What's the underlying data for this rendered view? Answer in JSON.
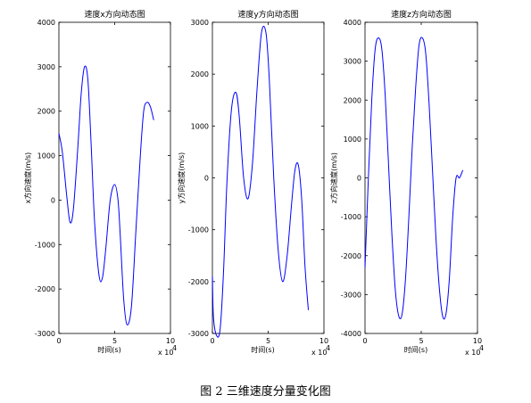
{
  "caption": "图 2  三维速度分量变化图",
  "chart_data": [
    {
      "type": "line",
      "title": "速度x方向动态图",
      "xlabel": "时间(s)",
      "ylabel": "x方向速度(m/s)",
      "xlim": [
        0,
        10
      ],
      "ylim": [
        -3000,
        4000
      ],
      "xticks": [
        0,
        5,
        10
      ],
      "yticks": [
        -3000,
        -2000,
        -1000,
        0,
        1000,
        2000,
        3000,
        4000
      ],
      "x_multiplier": "x 10",
      "x_multiplier_exp": "4",
      "color": "#0000ff",
      "series": [
        {
          "x": [
            0,
            0.3,
            0.7,
            1.0,
            1.3,
            1.7,
            2.0,
            2.3,
            2.6,
            2.9,
            3.2,
            3.6,
            3.9,
            4.2,
            4.6,
            5.0,
            5.3,
            5.5,
            5.8,
            6.1,
            6.5,
            6.9,
            7.3,
            7.6,
            7.9,
            8.2,
            8.5
          ],
          "y": [
            1500,
            1100,
            100,
            -500,
            -200,
            1200,
            2400,
            3000,
            2700,
            1200,
            -500,
            -1700,
            -1750,
            -1100,
            0,
            350,
            0,
            -800,
            -2200,
            -2800,
            -2400,
            -700,
            1000,
            2000,
            2200,
            2100,
            1800
          ]
        }
      ]
    },
    {
      "type": "line",
      "title": "速度y方向动态图",
      "xlabel": "时间(s)",
      "ylabel": "y方向速度(m/s)",
      "xlim": [
        0,
        10
      ],
      "ylim": [
        -3000,
        3000
      ],
      "xticks": [
        0,
        5,
        10
      ],
      "yticks": [
        -3000,
        -2000,
        -1000,
        0,
        1000,
        2000,
        3000
      ],
      "x_multiplier": "x 10",
      "x_multiplier_exp": "4",
      "color": "#0000ff",
      "series": [
        {
          "x": [
            0,
            0.1,
            0.4,
            0.7,
            1.0,
            1.3,
            1.7,
            2.1,
            2.4,
            2.8,
            3.2,
            3.6,
            4.0,
            4.4,
            4.8,
            5.1,
            5.5,
            5.9,
            6.3,
            6.7,
            7.1,
            7.4,
            7.7,
            8.0,
            8.3,
            8.6
          ],
          "y": [
            -1900,
            -2700,
            -3050,
            -2900,
            -1800,
            -100,
            1300,
            1650,
            1200,
            0,
            -400,
            300,
            1700,
            2800,
            2800,
            1900,
            0,
            -1400,
            -2000,
            -1500,
            -500,
            150,
            250,
            -400,
            -1700,
            -2550
          ]
        }
      ]
    },
    {
      "type": "line",
      "title": "速度z方向动态图",
      "xlabel": "时间(s)",
      "ylabel": "z方向速度(m/s)",
      "xlim": [
        0,
        10
      ],
      "ylim": [
        -4000,
        4000
      ],
      "xticks": [
        0,
        5,
        10
      ],
      "yticks": [
        -4000,
        -3000,
        -2000,
        -1000,
        0,
        1000,
        2000,
        3000,
        4000
      ],
      "x_multiplier": "x 10",
      "x_multiplier_exp": "4",
      "color": "#0000ff",
      "series": [
        {
          "x": [
            0,
            0.3,
            0.6,
            0.9,
            1.2,
            1.5,
            1.8,
            2.1,
            2.4,
            2.7,
            3.0,
            3.3,
            3.6,
            3.9,
            4.2,
            4.5,
            4.8,
            5.1,
            5.4,
            5.7,
            6.0,
            6.3,
            6.6,
            6.9,
            7.2,
            7.5,
            7.8,
            8.1,
            8.4,
            8.7
          ],
          "y": [
            -2300,
            0,
            2000,
            3300,
            3600,
            3300,
            2100,
            300,
            -1500,
            -2900,
            -3550,
            -3500,
            -2600,
            -1000,
            800,
            2300,
            3400,
            3600,
            3200,
            1900,
            200,
            -1500,
            -2800,
            -3550,
            -3500,
            -2600,
            -1000,
            0,
            0,
            200
          ]
        }
      ]
    }
  ]
}
